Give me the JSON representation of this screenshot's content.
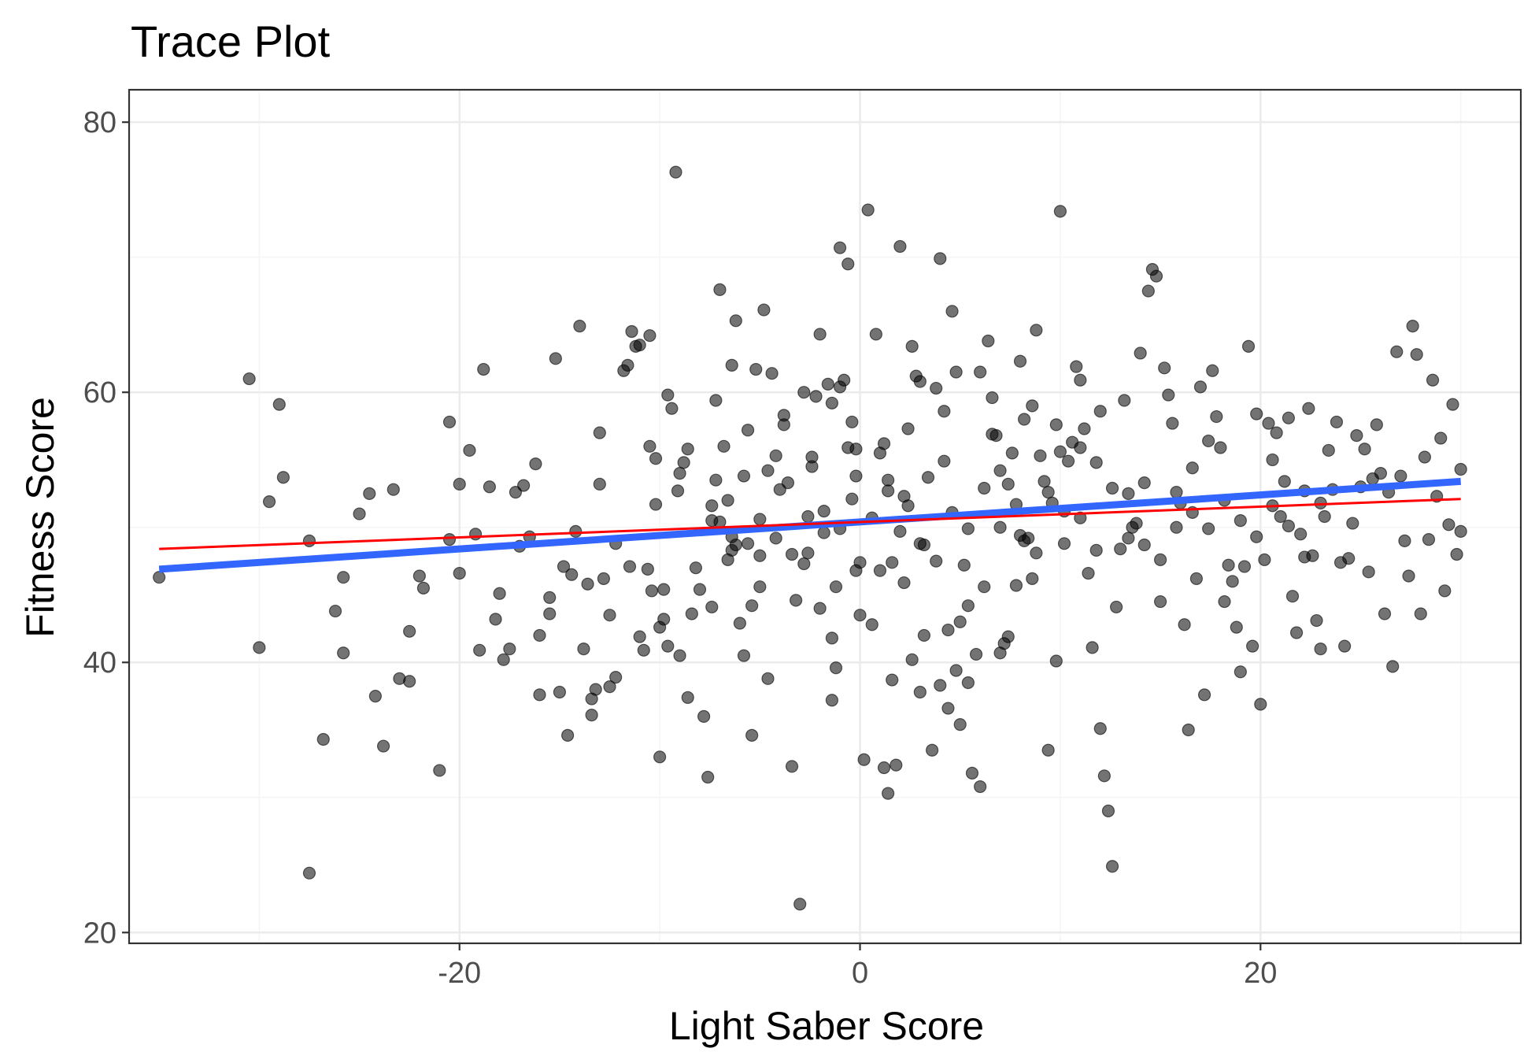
{
  "chart_data": {
    "type": "scatter",
    "title": "Trace Plot",
    "xlabel": "Light Saber Score",
    "ylabel": "Fitness Score",
    "xlim": [
      -36.5,
      33
    ],
    "ylim": [
      19.2,
      82.4
    ],
    "x_ticks": [
      -20,
      0,
      20
    ],
    "y_ticks": [
      20,
      40,
      60,
      80
    ],
    "x_tick_labels": [
      "-20",
      "0",
      "20"
    ],
    "y_tick_labels": [
      "20",
      "40",
      "60",
      "80"
    ],
    "grid": true,
    "legend": "none",
    "colors": {
      "points": "#000000",
      "blue_line": "#3366ff",
      "red_line": "#ff0000",
      "panel_border": "#333333",
      "grid_major": "#ebebeb",
      "grid_minor": "#f5f5f5"
    },
    "lines": [
      {
        "color": "#3366ff",
        "x": [
          -35,
          30
        ],
        "y": [
          46.9,
          53.4
        ]
      },
      {
        "color": "#ff0000",
        "x": [
          -35,
          30
        ],
        "y": [
          48.4,
          52.1
        ]
      }
    ],
    "points": [
      [
        -35,
        46.3
      ],
      [
        -30.5,
        61
      ],
      [
        -30,
        41.1
      ],
      [
        -29.5,
        51.9
      ],
      [
        -29,
        59.1
      ],
      [
        -27.5,
        24.4
      ],
      [
        -27.5,
        49
      ],
      [
        -26.8,
        34.3
      ],
      [
        -25.8,
        40.7
      ],
      [
        -25.8,
        46.3
      ],
      [
        -25,
        51
      ],
      [
        -24.5,
        52.5
      ],
      [
        -23.8,
        33.8
      ],
      [
        -23.3,
        52.8
      ],
      [
        -23,
        38.8
      ],
      [
        -22.5,
        42.3
      ],
      [
        -22.5,
        38.6
      ],
      [
        -22,
        46.4
      ],
      [
        -21,
        32
      ],
      [
        -20.5,
        57.8
      ],
      [
        -20.5,
        49.1
      ],
      [
        -20,
        46.6
      ],
      [
        -20,
        53.2
      ],
      [
        -19.5,
        55.7
      ],
      [
        -19,
        40.9
      ],
      [
        -18.5,
        53
      ],
      [
        -18,
        45.1
      ],
      [
        -17.5,
        41
      ],
      [
        -17.2,
        52.6
      ],
      [
        -17,
        48.6
      ],
      [
        -16.8,
        53.1
      ],
      [
        -16.5,
        49.3
      ],
      [
        -16,
        37.6
      ],
      [
        -16,
        42
      ],
      [
        -15.5,
        43.6
      ],
      [
        -15.5,
        44.8
      ],
      [
        -15,
        37.8
      ],
      [
        -14.8,
        47.1
      ],
      [
        -14.6,
        34.6
      ],
      [
        -14.4,
        46.5
      ],
      [
        -14,
        64.9
      ],
      [
        -13.8,
        41
      ],
      [
        -13.6,
        45.8
      ],
      [
        -13.4,
        37.3
      ],
      [
        -13.4,
        36.1
      ],
      [
        -13.2,
        38
      ],
      [
        -13,
        57
      ],
      [
        -12.8,
        46.2
      ],
      [
        -12.5,
        38.2
      ],
      [
        -12.5,
        43.5
      ],
      [
        -12.2,
        38.9
      ],
      [
        -11.8,
        61.6
      ],
      [
        -11.6,
        62
      ],
      [
        -11.4,
        64.5
      ],
      [
        -11.2,
        63.4
      ],
      [
        -11,
        63.5
      ],
      [
        -11,
        41.9
      ],
      [
        -10.8,
        40.9
      ],
      [
        -10.5,
        64.2
      ],
      [
        -10.5,
        56
      ],
      [
        -10.4,
        45.3
      ],
      [
        -10.2,
        55.1
      ],
      [
        -10.2,
        51.7
      ],
      [
        -10,
        42.6
      ],
      [
        -10,
        33
      ],
      [
        -9.8,
        43.2
      ],
      [
        -9.6,
        59.8
      ],
      [
        -9.4,
        58.8
      ],
      [
        -9.2,
        76.3
      ],
      [
        -9.1,
        52.7
      ],
      [
        -9,
        54
      ],
      [
        -8.8,
        54.8
      ],
      [
        -8.6,
        55.8
      ],
      [
        -8.4,
        43.6
      ],
      [
        -8,
        45.4
      ],
      [
        -7.8,
        36
      ],
      [
        -7.6,
        31.5
      ],
      [
        -7.4,
        50.5
      ],
      [
        -7.4,
        51.6
      ],
      [
        -7.2,
        53.5
      ],
      [
        -7,
        50.4
      ],
      [
        -7,
        67.6
      ],
      [
        -6.8,
        56
      ],
      [
        -6.6,
        52
      ],
      [
        -6.4,
        49.3
      ],
      [
        -6.4,
        48.3
      ],
      [
        -6.2,
        48.7
      ],
      [
        -6.2,
        65.3
      ],
      [
        -6,
        42.9
      ],
      [
        -5.8,
        40.5
      ],
      [
        -5.6,
        57.2
      ],
      [
        -5.6,
        48.8
      ],
      [
        -5.4,
        44.2
      ],
      [
        -5.4,
        34.6
      ],
      [
        -5.2,
        61.7
      ],
      [
        -5,
        47.9
      ],
      [
        -5,
        50.6
      ],
      [
        -4.8,
        66.1
      ],
      [
        -4.6,
        54.2
      ],
      [
        -4.4,
        61.4
      ],
      [
        -4.2,
        55.3
      ],
      [
        -4,
        52.8
      ],
      [
        -3.8,
        57.6
      ],
      [
        -3.6,
        53.3
      ],
      [
        -3.4,
        32.3
      ],
      [
        -3.2,
        44.6
      ],
      [
        -3,
        22.1
      ],
      [
        -2.8,
        47.3
      ],
      [
        -2.8,
        60
      ],
      [
        -2.6,
        50.8
      ],
      [
        -2.4,
        54.5
      ],
      [
        -2.4,
        55.2
      ],
      [
        -2.2,
        59.7
      ],
      [
        -2,
        44
      ],
      [
        -1.8,
        49.6
      ],
      [
        -1.6,
        60.6
      ],
      [
        -1.4,
        59.2
      ],
      [
        -1.4,
        37.2
      ],
      [
        -1.2,
        39.6
      ],
      [
        -1.2,
        45.6
      ],
      [
        -1,
        60.4
      ],
      [
        -1,
        70.7
      ],
      [
        -0.8,
        60.9
      ],
      [
        -0.6,
        55.9
      ],
      [
        -0.6,
        69.5
      ],
      [
        -0.4,
        57.8
      ],
      [
        -0.4,
        52.1
      ],
      [
        -0.2,
        53.8
      ],
      [
        -0.2,
        55.8
      ],
      [
        0,
        43.5
      ],
      [
        0,
        47.4
      ],
      [
        0.2,
        32.8
      ],
      [
        0.4,
        73.5
      ],
      [
        0.6,
        42.8
      ],
      [
        0.8,
        64.3
      ],
      [
        1,
        55.5
      ],
      [
        1,
        46.8
      ],
      [
        1.2,
        32.2
      ],
      [
        1.2,
        56.2
      ],
      [
        1.4,
        30.3
      ],
      [
        1.4,
        52.7
      ],
      [
        1.6,
        47.4
      ],
      [
        1.8,
        32.4
      ],
      [
        2,
        70.8
      ],
      [
        2,
        49.7
      ],
      [
        2.2,
        52.3
      ],
      [
        2.4,
        51.6
      ],
      [
        2.6,
        40.2
      ],
      [
        2.6,
        63.4
      ],
      [
        2.8,
        61.2
      ],
      [
        3,
        37.8
      ],
      [
        3,
        60.8
      ],
      [
        3.2,
        42
      ],
      [
        3.2,
        48.7
      ],
      [
        3.4,
        53.7
      ],
      [
        3.6,
        33.5
      ],
      [
        3.8,
        60.3
      ],
      [
        4,
        69.9
      ],
      [
        4,
        38.3
      ],
      [
        4.2,
        54.9
      ],
      [
        4.4,
        36.6
      ],
      [
        4.4,
        42.4
      ],
      [
        4.6,
        66
      ],
      [
        4.8,
        61.5
      ],
      [
        5,
        43
      ],
      [
        5,
        35.4
      ],
      [
        5.2,
        47.2
      ],
      [
        5.4,
        44.2
      ],
      [
        5.4,
        38.5
      ],
      [
        5.6,
        31.8
      ],
      [
        5.8,
        40.6
      ],
      [
        6,
        30.8
      ],
      [
        6,
        61.5
      ],
      [
        6.2,
        45.6
      ],
      [
        6.4,
        63.8
      ],
      [
        6.6,
        56.9
      ],
      [
        6.8,
        56.8
      ],
      [
        7,
        54.2
      ],
      [
        7,
        40.7
      ],
      [
        7.2,
        41.4
      ],
      [
        7.4,
        53.2
      ],
      [
        7.6,
        55.5
      ],
      [
        7.8,
        45.7
      ],
      [
        8,
        49.4
      ],
      [
        8,
        62.3
      ],
      [
        8.2,
        49
      ],
      [
        8.4,
        49.2
      ],
      [
        8.6,
        59
      ],
      [
        8.8,
        64.6
      ],
      [
        8.8,
        48.1
      ],
      [
        9,
        55.3
      ],
      [
        9.2,
        53.4
      ],
      [
        9.4,
        33.5
      ],
      [
        9.6,
        51.8
      ],
      [
        9.8,
        57.6
      ],
      [
        10,
        55.6
      ],
      [
        10,
        73.4
      ],
      [
        10.2,
        48.8
      ],
      [
        10.4,
        54.9
      ],
      [
        10.6,
        56.3
      ],
      [
        10.8,
        61.9
      ],
      [
        11,
        55.9
      ],
      [
        11,
        60.9
      ],
      [
        11.2,
        57.3
      ],
      [
        11.4,
        46.6
      ],
      [
        11.6,
        41.1
      ],
      [
        11.8,
        54.8
      ],
      [
        12,
        58.6
      ],
      [
        12,
        35.1
      ],
      [
        12.2,
        31.6
      ],
      [
        12.4,
        29
      ],
      [
        12.6,
        24.9
      ],
      [
        12.8,
        44.1
      ],
      [
        13,
        48.4
      ],
      [
        13.2,
        59.4
      ],
      [
        13.4,
        52.5
      ],
      [
        13.6,
        50
      ],
      [
        13.8,
        50.3
      ],
      [
        14,
        62.9
      ],
      [
        14.2,
        53.3
      ],
      [
        14.4,
        67.5
      ],
      [
        14.6,
        69.1
      ],
      [
        14.8,
        68.6
      ],
      [
        15,
        44.5
      ],
      [
        15.2,
        61.8
      ],
      [
        15.4,
        59.8
      ],
      [
        15.6,
        57.7
      ],
      [
        15.8,
        52.6
      ],
      [
        16,
        51.8
      ],
      [
        16.2,
        42.8
      ],
      [
        16.4,
        35
      ],
      [
        16.6,
        54.4
      ],
      [
        16.8,
        46.2
      ],
      [
        17,
        60.4
      ],
      [
        17.2,
        37.6
      ],
      [
        17.4,
        56.4
      ],
      [
        17.6,
        61.6
      ],
      [
        17.8,
        58.2
      ],
      [
        18,
        55.9
      ],
      [
        18.2,
        44.5
      ],
      [
        18.4,
        47.2
      ],
      [
        18.6,
        46
      ],
      [
        18.8,
        42.6
      ],
      [
        19,
        39.3
      ],
      [
        19.2,
        47.1
      ],
      [
        19.4,
        63.4
      ],
      [
        19.6,
        41.2
      ],
      [
        19.8,
        58.4
      ],
      [
        20,
        36.9
      ],
      [
        20.2,
        47.6
      ],
      [
        20.4,
        57.7
      ],
      [
        20.6,
        55
      ],
      [
        20.8,
        57
      ],
      [
        21,
        50.8
      ],
      [
        21.2,
        53.4
      ],
      [
        21.4,
        58.1
      ],
      [
        21.6,
        44.9
      ],
      [
        21.8,
        42.2
      ],
      [
        22,
        49.5
      ],
      [
        22.2,
        52.7
      ],
      [
        22.4,
        58.8
      ],
      [
        22.6,
        47.9
      ],
      [
        22.8,
        43.1
      ],
      [
        23,
        41
      ],
      [
        23.2,
        50.8
      ],
      [
        23.4,
        55.7
      ],
      [
        23.6,
        52.8
      ],
      [
        23.8,
        57.8
      ],
      [
        24,
        47.4
      ],
      [
        24.2,
        41.2
      ],
      [
        24.4,
        47.7
      ],
      [
        24.6,
        50.3
      ],
      [
        24.8,
        56.8
      ],
      [
        25,
        53
      ],
      [
        25.2,
        55.8
      ],
      [
        25.4,
        46.7
      ],
      [
        25.6,
        53.6
      ],
      [
        25.8,
        57.6
      ],
      [
        26,
        54
      ],
      [
        26.2,
        43.6
      ],
      [
        26.4,
        52.6
      ],
      [
        26.6,
        39.7
      ],
      [
        26.8,
        63
      ],
      [
        27,
        53.8
      ],
      [
        27.2,
        49
      ],
      [
        27.4,
        46.4
      ],
      [
        27.6,
        64.9
      ],
      [
        27.8,
        62.8
      ],
      [
        28,
        43.6
      ],
      [
        28.2,
        55.2
      ],
      [
        28.4,
        49.1
      ],
      [
        28.6,
        60.9
      ],
      [
        28.8,
        52.3
      ],
      [
        29,
        56.6
      ],
      [
        29.2,
        45.3
      ],
      [
        29.4,
        50.2
      ],
      [
        29.6,
        59.1
      ],
      [
        29.8,
        48
      ],
      [
        30,
        49.7
      ],
      [
        30,
        54.3
      ],
      [
        -28.8,
        53.7
      ],
      [
        -26.2,
        43.8
      ],
      [
        -24.2,
        37.5
      ],
      [
        -21.8,
        45.5
      ],
      [
        -19.2,
        49.5
      ],
      [
        -18.8,
        61.7
      ],
      [
        -18.2,
        43.2
      ],
      [
        -17.8,
        40.2
      ],
      [
        -16.2,
        54.7
      ],
      [
        -15.2,
        62.5
      ],
      [
        -14.2,
        49.7
      ],
      [
        -13,
        53.2
      ],
      [
        -12.2,
        48.8
      ],
      [
        -11.5,
        47.1
      ],
      [
        -10.6,
        46.9
      ],
      [
        -9.8,
        45.4
      ],
      [
        -9,
        40.5
      ],
      [
        -8.2,
        47
      ],
      [
        -7.4,
        44.1
      ],
      [
        -6.6,
        47.6
      ],
      [
        -5.8,
        53.8
      ],
      [
        -5,
        45.6
      ],
      [
        -4.2,
        49.2
      ],
      [
        -3.4,
        48
      ],
      [
        -2.6,
        48.1
      ],
      [
        -1.8,
        51.2
      ],
      [
        -1,
        49.9
      ],
      [
        -0.2,
        46.8
      ],
      [
        0.6,
        50.7
      ],
      [
        1.4,
        53.5
      ],
      [
        2.2,
        45.9
      ],
      [
        3,
        48.8
      ],
      [
        3.8,
        47.5
      ],
      [
        4.6,
        51.1
      ],
      [
        5.4,
        49.9
      ],
      [
        6.2,
        52.9
      ],
      [
        7,
        50
      ],
      [
        7.8,
        51.7
      ],
      [
        8.6,
        46.2
      ],
      [
        9.4,
        52.6
      ],
      [
        10.2,
        51.2
      ],
      [
        11,
        50.7
      ],
      [
        11.8,
        48.3
      ],
      [
        12.6,
        52.9
      ],
      [
        13.4,
        49.2
      ],
      [
        14.2,
        48.7
      ],
      [
        15,
        47.6
      ],
      [
        15.8,
        50
      ],
      [
        16.6,
        51.1
      ],
      [
        17.4,
        49.9
      ],
      [
        18.2,
        52
      ],
      [
        19,
        50.5
      ],
      [
        19.8,
        49.3
      ],
      [
        20.6,
        51.6
      ],
      [
        21.4,
        50.1
      ],
      [
        22.2,
        47.8
      ],
      [
        23,
        51.8
      ],
      [
        -7.2,
        59.4
      ],
      [
        -6.4,
        62
      ],
      [
        -3.8,
        58.3
      ],
      [
        -2,
        64.3
      ],
      [
        2.4,
        57.3
      ],
      [
        4.2,
        58.6
      ],
      [
        6.6,
        59.6
      ],
      [
        8.2,
        58
      ],
      [
        -9.6,
        41.2
      ],
      [
        -8.6,
        37.4
      ],
      [
        -4.6,
        38.8
      ],
      [
        -1.4,
        41.8
      ],
      [
        1.6,
        38.7
      ],
      [
        4.8,
        39.4
      ],
      [
        7.4,
        41.9
      ],
      [
        9.8,
        40.1
      ]
    ]
  }
}
